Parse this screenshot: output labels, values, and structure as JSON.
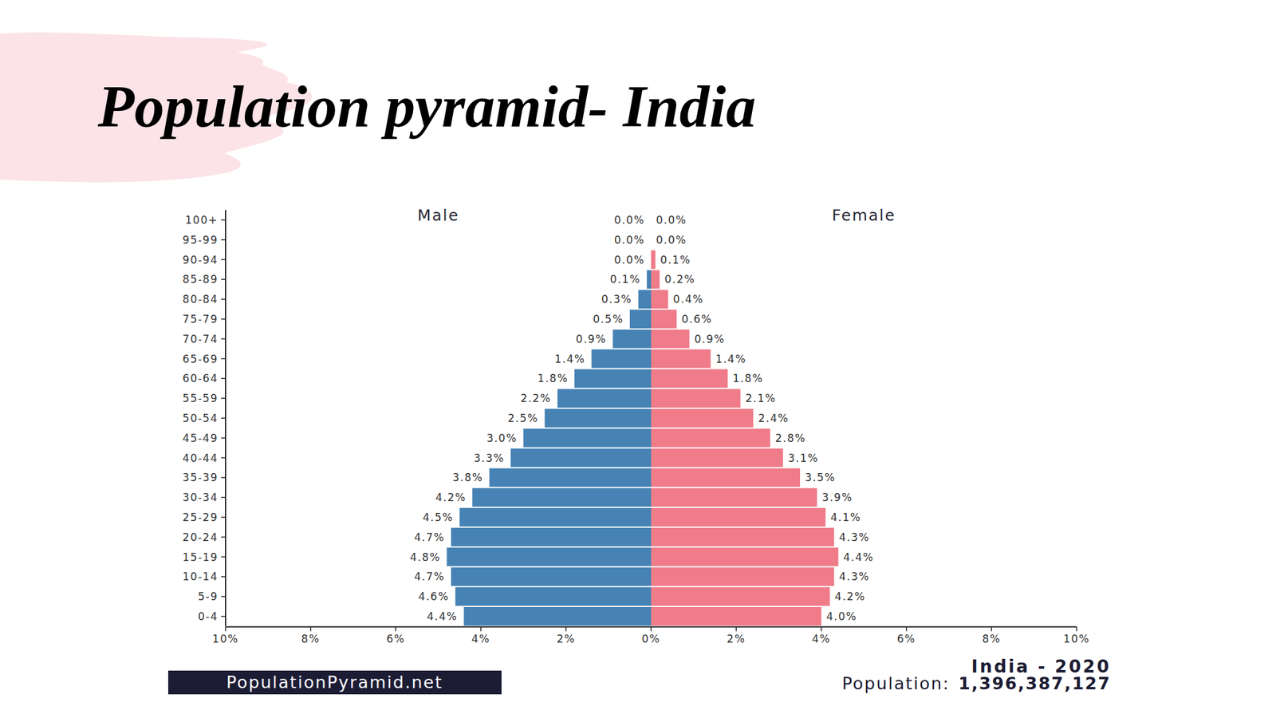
{
  "page": {
    "title": "Population pyramid- India",
    "source": "PopulationPyramid.net",
    "caption": "India - 2020",
    "population_label": "Population:",
    "population": "1,396,387,127"
  },
  "chart_data": [
    {
      "type": "bar",
      "title": "Male",
      "orientation": "horizontal",
      "data_labels": true,
      "color": "#4682b4",
      "categories": [
        "100+",
        "95-99",
        "90-94",
        "85-89",
        "80-84",
        "75-79",
        "70-74",
        "65-69",
        "60-64",
        "55-59",
        "50-54",
        "45-49",
        "40-44",
        "35-39",
        "30-34",
        "25-29",
        "20-24",
        "15-19",
        "10-14",
        "5-9",
        "0-4"
      ],
      "values": [
        0.0,
        0.0,
        0.0,
        0.1,
        0.3,
        0.5,
        0.9,
        1.4,
        1.8,
        2.2,
        2.5,
        3.0,
        3.3,
        3.8,
        4.2,
        4.5,
        4.7,
        4.8,
        4.7,
        4.6,
        4.4
      ],
      "value_labels": [
        "0.0%",
        "0.0%",
        "0.0%",
        "0.1%",
        "0.3%",
        "0.5%",
        "0.9%",
        "1.4%",
        "1.8%",
        "2.2%",
        "2.5%",
        "3.0%",
        "3.3%",
        "3.8%",
        "4.2%",
        "4.5%",
        "4.7%",
        "4.8%",
        "4.7%",
        "4.6%",
        "4.4%"
      ],
      "xlim": [
        10,
        0
      ],
      "xticks": [
        {
          "value": 10,
          "label": "10%"
        },
        {
          "value": 8,
          "label": "8%"
        },
        {
          "value": 6,
          "label": "6%"
        },
        {
          "value": 4,
          "label": "4%"
        },
        {
          "value": 2,
          "label": "2%"
        },
        {
          "value": 0,
          "label": "0%"
        }
      ]
    },
    {
      "type": "bar",
      "title": "Female",
      "orientation": "horizontal",
      "data_labels": true,
      "tick_labels": "x",
      "color": "#f07b89",
      "categories": [
        "100+",
        "95-99",
        "90-94",
        "85-89",
        "80-84",
        "75-79",
        "70-74",
        "65-69",
        "60-64",
        "55-59",
        "50-54",
        "45-49",
        "40-44",
        "35-39",
        "30-34",
        "25-29",
        "20-24",
        "15-19",
        "10-14",
        "5-9",
        "0-4"
      ],
      "values": [
        0.0,
        0.0,
        0.1,
        0.2,
        0.4,
        0.6,
        0.9,
        1.4,
        1.8,
        2.1,
        2.4,
        2.8,
        3.1,
        3.5,
        3.9,
        4.1,
        4.3,
        4.4,
        4.3,
        4.2,
        4.0
      ],
      "value_labels": [
        "0.0%",
        "0.0%",
        "0.1%",
        "0.2%",
        "0.4%",
        "0.6%",
        "0.9%",
        "1.4%",
        "1.8%",
        "2.1%",
        "2.4%",
        "2.8%",
        "3.1%",
        "3.5%",
        "3.9%",
        "4.1%",
        "4.3%",
        "4.4%",
        "4.3%",
        "4.2%",
        "4.0%"
      ],
      "xlim": [
        0,
        10
      ],
      "xticks": [
        {
          "value": 2,
          "label": "2%"
        },
        {
          "value": 4,
          "label": "4%"
        },
        {
          "value": 6,
          "label": "6%"
        },
        {
          "value": 8,
          "label": "8%"
        },
        {
          "value": 10,
          "label": "10%"
        }
      ]
    }
  ]
}
